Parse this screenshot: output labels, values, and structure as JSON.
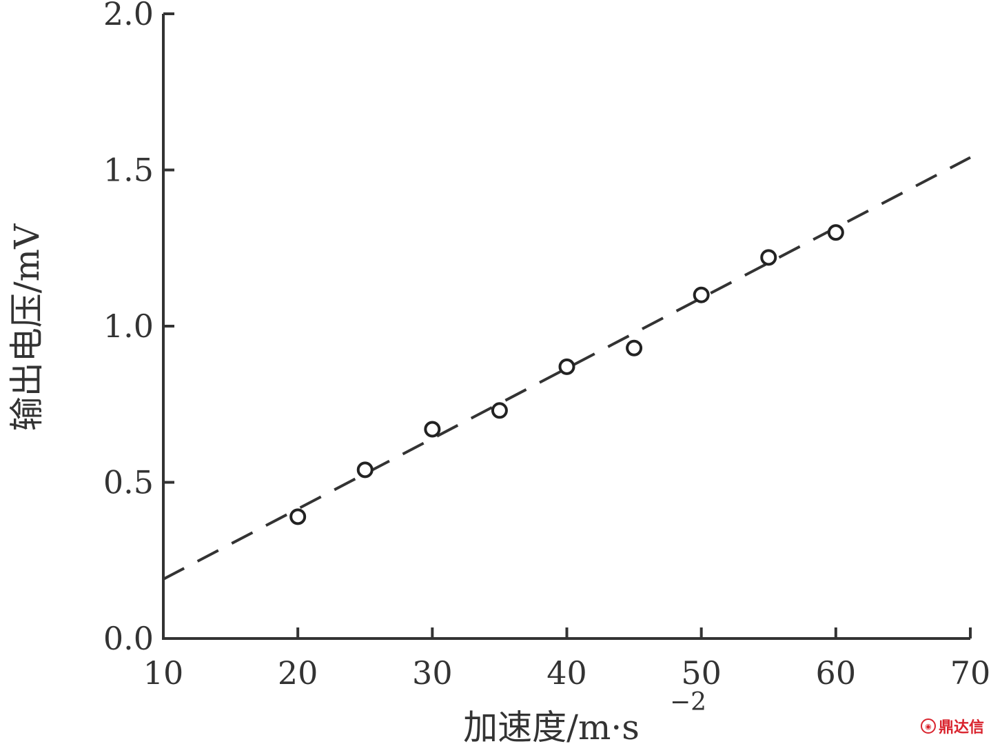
{
  "chart_data": {
    "type": "scatter",
    "title": "",
    "xlabel": "加速度/m·s",
    "xlabel_superscript": "−2",
    "ylabel": "输出电压/mV",
    "xlim": [
      10,
      70
    ],
    "ylim": [
      0.0,
      2.0
    ],
    "x_ticks": [
      "10",
      "20",
      "30",
      "40",
      "50",
      "60",
      "70"
    ],
    "y_ticks": [
      "0.0",
      "0.5",
      "1.0",
      "1.5",
      "2.0"
    ],
    "grid": false,
    "series": [
      {
        "marker": "open-circle",
        "x": [
          20,
          25,
          30,
          35,
          40,
          45,
          50,
          55,
          60
        ],
        "y": [
          0.39,
          0.54,
          0.67,
          0.73,
          0.87,
          0.93,
          1.1,
          1.22,
          1.3
        ]
      }
    ],
    "fit_line": {
      "style": "dashed",
      "x": [
        10,
        70
      ],
      "y": [
        0.19,
        1.54
      ]
    }
  },
  "watermark": {
    "text": "鼎达信",
    "logo_icon": "watermark-logo-icon"
  }
}
